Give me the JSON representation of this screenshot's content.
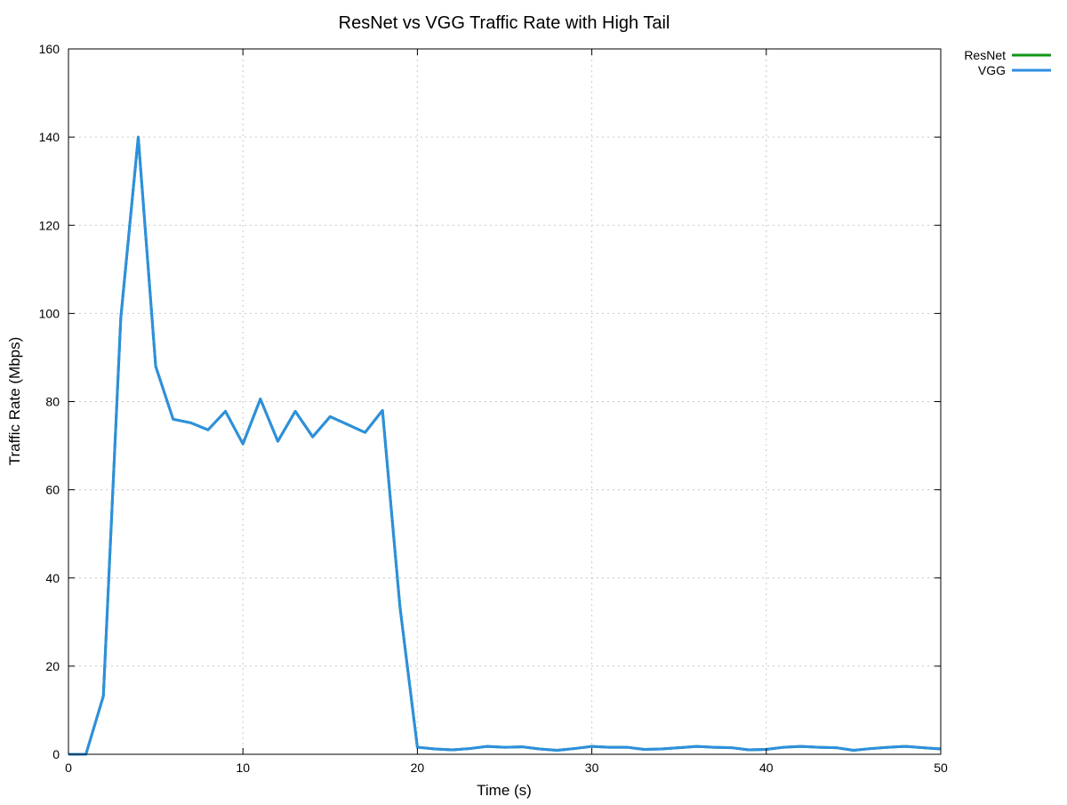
{
  "chart_data": {
    "type": "line",
    "title": "ResNet vs VGG Traffic Rate with High Tail",
    "xlabel": "Time (s)",
    "ylabel": "Traffic Rate (Mbps)",
    "xlim": [
      0,
      50
    ],
    "ylim": [
      0,
      160
    ],
    "xticks": [
      0,
      10,
      20,
      30,
      40,
      50
    ],
    "yticks": [
      0,
      20,
      40,
      60,
      80,
      100,
      120,
      140,
      160
    ],
    "grid": true,
    "legend_position": "top-right outside",
    "series": [
      {
        "name": "ResNet",
        "color": "#109618",
        "x": [
          0,
          1,
          2,
          3,
          4,
          5,
          6,
          7,
          8,
          9,
          10,
          11,
          12,
          13,
          14,
          15,
          16,
          17,
          18,
          19,
          20,
          21,
          22,
          23,
          24,
          25,
          26,
          27,
          28,
          29,
          30,
          31,
          32,
          33,
          34,
          35,
          36,
          37,
          38,
          39,
          40,
          41,
          42,
          43,
          44,
          45,
          46,
          47,
          48,
          49,
          50
        ],
        "y": [
          0,
          0,
          13.2,
          99,
          140,
          88,
          76,
          75.2,
          73.6,
          77.8,
          70.4,
          80.6,
          71,
          77.8,
          72,
          76.6,
          74.8,
          73,
          78,
          33.5,
          1.6,
          1.2,
          1,
          1.3,
          1.8,
          1.6,
          1.7,
          1.2,
          0.9,
          1.3,
          1.8,
          1.6,
          1.6,
          1.1,
          1.2,
          1.5,
          1.8,
          1.6,
          1.5,
          1,
          1.1,
          1.6,
          1.8,
          1.6,
          1.5,
          0.9,
          1.3,
          1.6,
          1.8,
          1.5,
          1.2
        ]
      },
      {
        "name": "VGG",
        "color": "#2d8fe0",
        "x": [
          0,
          1,
          2,
          3,
          4,
          5,
          6,
          7,
          8,
          9,
          10,
          11,
          12,
          13,
          14,
          15,
          16,
          17,
          18,
          19,
          20,
          21,
          22,
          23,
          24,
          25,
          26,
          27,
          28,
          29,
          30,
          31,
          32,
          33,
          34,
          35,
          36,
          37,
          38,
          39,
          40,
          41,
          42,
          43,
          44,
          45,
          46,
          47,
          48,
          49,
          50
        ],
        "y": [
          0,
          0,
          13.2,
          99,
          140,
          88,
          76,
          75.2,
          73.6,
          77.8,
          70.4,
          80.6,
          71,
          77.8,
          72,
          76.6,
          74.8,
          73,
          78,
          33.5,
          1.6,
          1.2,
          1,
          1.3,
          1.8,
          1.6,
          1.7,
          1.2,
          0.9,
          1.3,
          1.8,
          1.6,
          1.6,
          1.1,
          1.2,
          1.5,
          1.8,
          1.6,
          1.5,
          1,
          1.1,
          1.6,
          1.8,
          1.6,
          1.5,
          0.9,
          1.3,
          1.6,
          1.8,
          1.5,
          1.2
        ]
      }
    ]
  }
}
